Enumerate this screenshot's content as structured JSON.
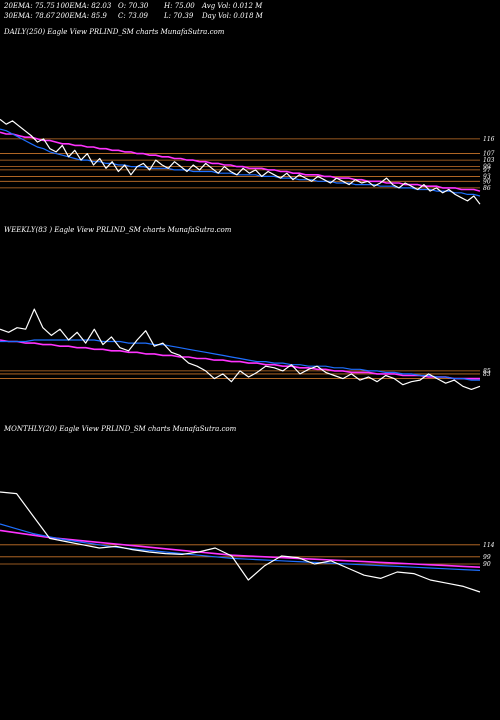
{
  "header": {
    "row1": [
      "20EMA: 75.75",
      "100EMA: 82.03",
      "O: 70.30",
      "H: 75.00",
      "Avg Vol: 0.012  M"
    ],
    "row2": [
      "30EMA: 78.67",
      "200EMA: 85.9",
      "C: 73.09",
      "L: 70.39",
      "Day Vol: 0.018  M"
    ]
  },
  "colors": {
    "price": "#ffffff",
    "ema_fast": "#1e6fff",
    "ema_long": "#ff33ff",
    "level": "#c8742a",
    "grid": "#555555"
  },
  "chart_data": [
    {
      "type": "line",
      "label": "DAILY(250) Eagle  View  PRLIND_SM charts MunafaSutra.com",
      "ylim": [
        70,
        130
      ],
      "levels": [
        116,
        107,
        103,
        99,
        97,
        93,
        90,
        86
      ],
      "tick_labels": [
        "116",
        "107",
        "103",
        "99",
        "97",
        "93",
        "90",
        "86"
      ],
      "series": [
        {
          "role": "price",
          "values": [
            128,
            125,
            127,
            124,
            121,
            118,
            114,
            116,
            110,
            108,
            112,
            105,
            109,
            103,
            107,
            100,
            104,
            98,
            102,
            96,
            100,
            94,
            99,
            101,
            97,
            103,
            100,
            98,
            102,
            99,
            96,
            100,
            97,
            101,
            98,
            95,
            99,
            96,
            94,
            98,
            95,
            97,
            93,
            96,
            94,
            92,
            95,
            91,
            94,
            92,
            90,
            93,
            91,
            89,
            92,
            90,
            88,
            91,
            89,
            90,
            87,
            89,
            92,
            88,
            86,
            89,
            87,
            85,
            88,
            84,
            86,
            83,
            85,
            82,
            80,
            78,
            81,
            76
          ]
        },
        {
          "role": "ema_fast",
          "values": [
            122,
            121,
            119,
            117,
            115,
            113,
            111,
            110,
            108,
            107,
            106,
            105,
            104,
            103,
            103,
            102,
            102,
            101,
            101,
            100,
            100,
            99,
            99,
            99,
            98,
            98,
            98,
            98,
            97,
            97,
            97,
            96,
            96,
            96,
            96,
            95,
            95,
            95,
            94,
            94,
            94,
            94,
            93,
            93,
            93,
            92,
            92,
            92,
            91,
            91,
            91,
            90,
            90,
            90,
            89,
            89,
            89,
            88,
            88,
            88,
            88,
            87,
            87,
            87,
            86,
            86,
            86,
            85,
            85,
            85,
            84,
            84,
            84,
            83,
            83,
            82,
            82,
            81
          ]
        },
        {
          "role": "ema_long",
          "values": [
            120,
            119,
            119,
            118,
            117,
            117,
            116,
            115,
            115,
            114,
            113,
            113,
            112,
            112,
            111,
            111,
            110,
            110,
            109,
            109,
            108,
            108,
            107,
            107,
            106,
            106,
            105,
            105,
            104,
            104,
            103,
            103,
            102,
            102,
            101,
            101,
            100,
            100,
            99,
            99,
            98,
            98,
            98,
            97,
            97,
            96,
            96,
            95,
            95,
            94,
            94,
            94,
            93,
            93,
            92,
            92,
            92,
            91,
            91,
            90,
            90,
            90,
            89,
            89,
            89,
            88,
            88,
            88,
            87,
            87,
            87,
            86,
            86,
            86,
            85,
            85,
            85,
            84
          ]
        }
      ]
    },
    {
      "type": "line",
      "label": "WEEKLY(83        ) Eagle  View  PRLIND_SM charts MunafaSutra.com",
      "ylim": [
        70,
        140
      ],
      "levels": [
        85,
        83,
        80
      ],
      "tick_labels": [
        "85",
        "83"
      ],
      "series": [
        {
          "role": "price",
          "values": [
            112,
            110,
            113,
            112,
            125,
            113,
            108,
            112,
            105,
            110,
            103,
            112,
            102,
            107,
            100,
            98,
            105,
            111,
            101,
            103,
            97,
            95,
            90,
            88,
            85,
            80,
            83,
            78,
            85,
            81,
            84,
            88,
            87,
            85,
            89,
            83,
            86,
            88,
            84,
            82,
            80,
            83,
            79,
            81,
            78,
            82,
            80,
            76,
            78,
            79,
            83,
            80,
            77,
            79,
            75,
            73,
            75
          ]
        },
        {
          "role": "ema_fast",
          "values": [
            104,
            104,
            104,
            104,
            105,
            105,
            105,
            105,
            105,
            105,
            105,
            105,
            104,
            104,
            104,
            103,
            103,
            103,
            102,
            102,
            101,
            100,
            99,
            98,
            97,
            96,
            95,
            94,
            93,
            92,
            91,
            91,
            90,
            90,
            89,
            89,
            88,
            88,
            88,
            87,
            87,
            86,
            86,
            85,
            85,
            84,
            84,
            83,
            83,
            82,
            82,
            81,
            81,
            80,
            80,
            79,
            79
          ]
        },
        {
          "role": "ema_long",
          "values": [
            105,
            104,
            104,
            103,
            103,
            102,
            102,
            101,
            101,
            100,
            100,
            99,
            99,
            98,
            98,
            97,
            97,
            96,
            96,
            95,
            95,
            94,
            94,
            93,
            93,
            92,
            92,
            91,
            91,
            90,
            90,
            89,
            89,
            88,
            88,
            87,
            87,
            86,
            86,
            85,
            85,
            84,
            84,
            84,
            83,
            83,
            83,
            82,
            82,
            82,
            81,
            81,
            81,
            80,
            80,
            80,
            80
          ]
        }
      ]
    },
    {
      "type": "line",
      "label": "MONTHLY(20) Eagle  View  PRLIND_SM charts MunafaSutra.com",
      "ylim": [
        40,
        200
      ],
      "levels": [
        114,
        99,
        90
      ],
      "tick_labels": [
        "114",
        "99",
        "90"
      ],
      "series": [
        {
          "role": "price",
          "values": [
            180,
            178,
            150,
            122,
            118,
            114,
            110,
            112,
            108,
            105,
            103,
            102,
            105,
            110,
            100,
            70,
            88,
            100,
            98,
            90,
            94,
            85,
            76,
            72,
            80,
            78,
            70,
            66,
            62,
            55
          ]
        },
        {
          "role": "ema_fast",
          "values": [
            140,
            134,
            128,
            124,
            120,
            117,
            114,
            111,
            109,
            107,
            105,
            103,
            101,
            99,
            97,
            96,
            95,
            94,
            93,
            92,
            91,
            90,
            89,
            88,
            87,
            86,
            85,
            84,
            83,
            82
          ]
        },
        {
          "role": "ema_long",
          "values": [
            132,
            129,
            126,
            123,
            121,
            119,
            117,
            115,
            113,
            111,
            109,
            107,
            105,
            103,
            101,
            100,
            99,
            98,
            97,
            96,
            95,
            94,
            93,
            92,
            91,
            90,
            89,
            88,
            87,
            86
          ]
        }
      ]
    }
  ]
}
